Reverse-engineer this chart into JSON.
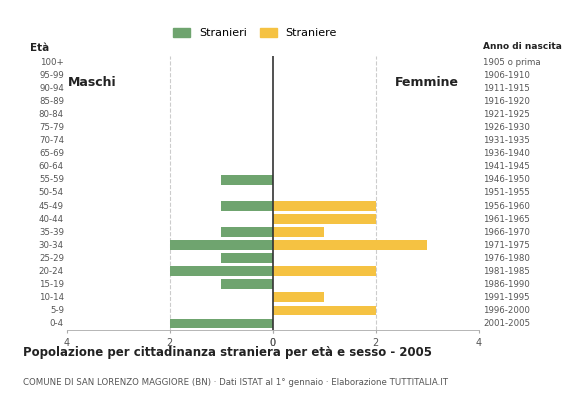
{
  "age_groups": [
    "100+",
    "95-99",
    "90-94",
    "85-89",
    "80-84",
    "75-79",
    "70-74",
    "65-69",
    "60-64",
    "55-59",
    "50-54",
    "45-49",
    "40-44",
    "35-39",
    "30-34",
    "25-29",
    "20-24",
    "15-19",
    "10-14",
    "5-9",
    "0-4"
  ],
  "birth_years": [
    "1905 o prima",
    "1906-1910",
    "1911-1915",
    "1916-1920",
    "1921-1925",
    "1926-1930",
    "1931-1935",
    "1936-1940",
    "1941-1945",
    "1946-1950",
    "1951-1955",
    "1956-1960",
    "1961-1965",
    "1966-1970",
    "1971-1975",
    "1976-1980",
    "1981-1985",
    "1986-1990",
    "1991-1995",
    "1996-2000",
    "2001-2005"
  ],
  "males": [
    0,
    0,
    0,
    0,
    0,
    0,
    0,
    0,
    0,
    1,
    0,
    1,
    0,
    1,
    2,
    1,
    2,
    1,
    0,
    0,
    2
  ],
  "females": [
    0,
    0,
    0,
    0,
    0,
    0,
    0,
    0,
    0,
    0,
    0,
    2,
    2,
    1,
    3,
    0,
    2,
    0,
    1,
    2,
    0
  ],
  "male_color": "#6fa46f",
  "female_color": "#f5c242",
  "xlim": 4,
  "title": "Popolazione per cittadinanza straniera per età e sesso - 2005",
  "subtitle": "COMUNE DI SAN LORENZO MAGGIORE (BN) · Dati ISTAT al 1° gennaio · Elaborazione TUTTITALIA.IT",
  "legend_male": "Stranieri",
  "legend_female": "Straniere",
  "label_eta": "Età",
  "label_maschi": "Maschi",
  "label_femmine": "Femmine",
  "anno_nascita": "Anno di nascita",
  "background_color": "#ffffff",
  "bar_height": 0.75,
  "grid_color": "#cccccc",
  "text_color": "#555555",
  "title_color": "#222222"
}
